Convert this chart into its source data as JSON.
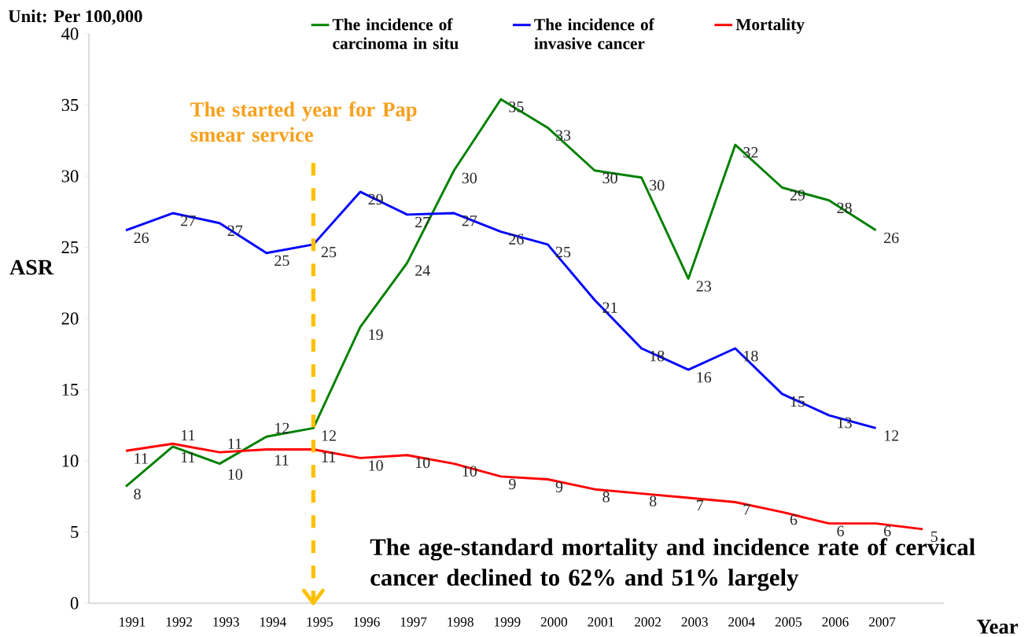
{
  "chart_data": {
    "type": "line",
    "categories": [
      "1991",
      "1992",
      "1993",
      "1994",
      "1995",
      "1996",
      "1997",
      "1998",
      "1999",
      "2000",
      "2001",
      "2002",
      "2003",
      "2004",
      "2005",
      "2006",
      "2007",
      null
    ],
    "series": [
      {
        "name": "The incidence of carcinoma in situ",
        "color": "#008000",
        "values": [
          8.2,
          11.0,
          9.8,
          11.7,
          12.3,
          19.4,
          23.9,
          30.4,
          35.4,
          33.4,
          30.4,
          29.9,
          22.8,
          32.2,
          29.2,
          28.3,
          26.2,
          null
        ],
        "value_labels": [
          "8",
          "11",
          "10",
          "12",
          "12",
          "19",
          "24",
          "30",
          "35",
          "33",
          "30",
          "30",
          "23",
          "32",
          "29",
          "28",
          "26",
          null
        ]
      },
      {
        "name": "The incidence of invasive cancer",
        "color": "#0000ff",
        "values": [
          26.2,
          27.4,
          26.7,
          24.6,
          25.2,
          28.9,
          27.3,
          27.4,
          26.1,
          25.2,
          21.3,
          17.9,
          16.4,
          17.9,
          14.7,
          13.2,
          12.3,
          null
        ],
        "value_labels": [
          "26",
          "27",
          "27",
          "25",
          "25",
          "29",
          "27",
          "27",
          "26",
          "25",
          "21",
          "18",
          "16",
          "18",
          "15",
          "13",
          "12",
          null
        ]
      },
      {
        "name": "Mortality",
        "color": "#ff0000",
        "values": [
          10.7,
          11.2,
          10.6,
          10.8,
          10.8,
          10.2,
          10.4,
          9.8,
          8.9,
          8.7,
          8.0,
          7.7,
          7.4,
          7.1,
          6.4,
          5.6,
          5.6,
          5.2
        ],
        "value_labels": [
          "11",
          "11",
          "11",
          "11",
          "11",
          "10",
          "10",
          "10",
          "9",
          "9",
          "8",
          "8",
          "7",
          "7",
          "6",
          "6",
          "6",
          "5"
        ]
      }
    ],
    "ylim": [
      0,
      40
    ],
    "yticks": [
      0,
      5,
      10,
      15,
      20,
      25,
      30,
      35,
      40
    ],
    "xlabel": "Year",
    "ylabel": "ASR",
    "legend": "top",
    "ref_lines": [
      {
        "axis": "x",
        "value": "1995",
        "label": "The started year for Pap smear service",
        "color": "#ffc000",
        "line_style": "dashed"
      }
    ],
    "annotations": [
      "Unit: Per 100,000",
      "The age-standard mortality and incidence rate of cervical cancer declined to 62% and 51% largely"
    ]
  }
}
